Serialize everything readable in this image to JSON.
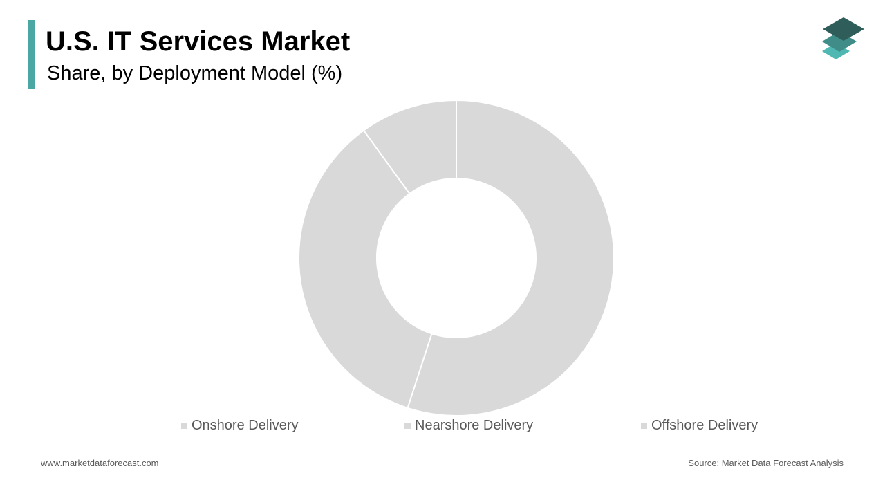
{
  "header": {
    "title": "U.S. IT Services Market",
    "subtitle": "Share, by Deployment Model (%)"
  },
  "colors": {
    "accent": "#4aa8a4",
    "slice": "#d9d9d9",
    "legend_text": "#595959",
    "logo_top": "#2f5d5a",
    "logo_mid": "#3f8c88",
    "logo_bottom": "#4fb8b2"
  },
  "logo": {
    "icon": "layers-icon"
  },
  "chart_data": {
    "type": "pie",
    "variant": "donut",
    "categories": [
      "Onshore Delivery",
      "Nearshore Delivery",
      "Offshore Delivery"
    ],
    "values": [
      55,
      35,
      10
    ],
    "legend_position": "bottom"
  },
  "footer": {
    "website": "www.marketdataforecast.com",
    "source": "Source: Market Data Forecast Analysis"
  }
}
